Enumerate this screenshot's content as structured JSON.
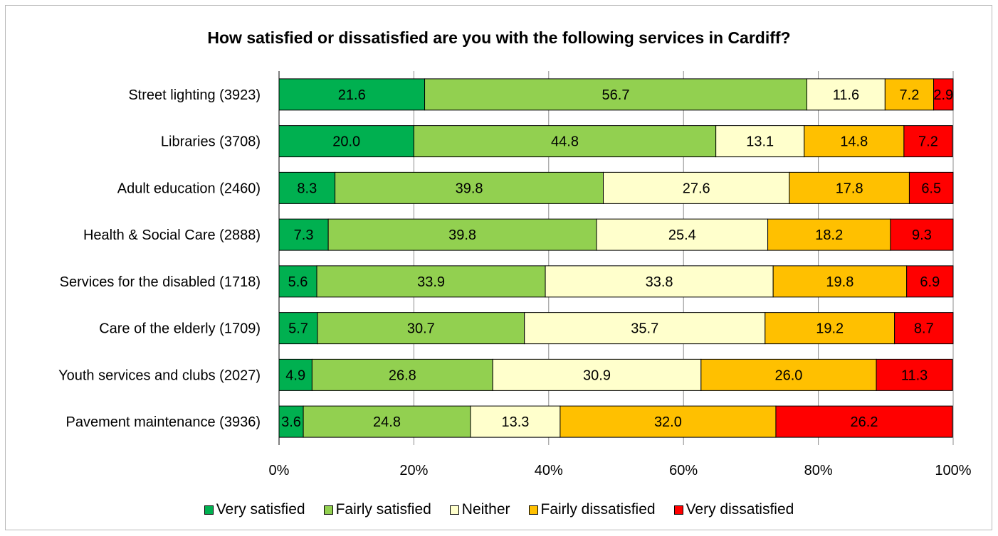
{
  "chart_data": {
    "type": "bar",
    "orientation": "horizontal-stacked-100",
    "title": "How satisfied or dissatisfied are you with the following services in Cardiff?",
    "categories": [
      "Street lighting (3923)",
      "Libraries (3708)",
      "Adult education (2460)",
      "Health & Social Care (2888)",
      "Services for the disabled (1718)",
      "Care of the elderly (1709)",
      "Youth services and clubs (2027)",
      "Pavement maintenance (3936)"
    ],
    "series": [
      {
        "name": "Very satisfied",
        "color": "#00b050",
        "values": [
          21.6,
          20.0,
          8.3,
          7.3,
          5.6,
          5.7,
          4.9,
          3.6
        ]
      },
      {
        "name": "Fairly satisfied",
        "color": "#92d050",
        "values": [
          56.7,
          44.8,
          39.8,
          39.8,
          33.9,
          30.7,
          26.8,
          24.8
        ]
      },
      {
        "name": "Neither",
        "color": "#ffffcc",
        "values": [
          11.6,
          13.1,
          27.6,
          25.4,
          33.8,
          35.7,
          30.9,
          13.3
        ]
      },
      {
        "name": "Fairly dissatisfied",
        "color": "#ffc000",
        "values": [
          7.2,
          14.8,
          17.8,
          18.2,
          19.8,
          19.2,
          26.0,
          32.0
        ]
      },
      {
        "name": "Very dissatisfied",
        "color": "#ff0000",
        "values": [
          2.9,
          7.2,
          6.5,
          9.3,
          6.9,
          8.7,
          11.3,
          26.2
        ]
      }
    ],
    "xlim": [
      0,
      100
    ],
    "xticks": [
      "0%",
      "20%",
      "40%",
      "60%",
      "80%",
      "100%"
    ],
    "grid": true,
    "legend_position": "bottom"
  }
}
